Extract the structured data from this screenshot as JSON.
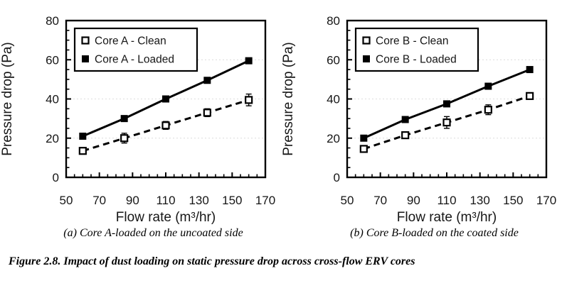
{
  "colors": {
    "ink": "#000000",
    "grid": "#dcdcdc",
    "background": "#ffffff"
  },
  "figure_caption": "Figure 2.8. Impact of dust loading on static pressure drop across cross-flow ERV cores",
  "chart_data": [
    {
      "type": "line",
      "caption": "(a) Core A-loaded on the uncoated side",
      "xlabel": "Flow rate (m³/hr)",
      "ylabel": "Pressure drop (Pa)",
      "xlim": [
        50,
        170
      ],
      "ylim": [
        0,
        80
      ],
      "x_ticks": [
        50,
        70,
        90,
        110,
        130,
        150,
        170
      ],
      "y_ticks": [
        0,
        20,
        40,
        60,
        80
      ],
      "x_minor_step": 5,
      "y_minor_step": 5,
      "grid": "horizontal-dotted",
      "legend_position": "top-left-inside",
      "x": [
        60,
        85,
        110,
        135,
        160
      ],
      "series": [
        {
          "name": "Core A - Clean",
          "marker": "open-square",
          "line": "dashed",
          "values": [
            13.5,
            20,
            26.5,
            33,
            39.5
          ],
          "errors": [
            1.5,
            2.5,
            2,
            2,
            3
          ]
        },
        {
          "name": "Core A - Loaded",
          "marker": "filled-square",
          "line": "solid",
          "values": [
            21,
            30,
            40,
            49.5,
            59.5
          ],
          "errors": [
            1,
            1,
            1,
            1,
            1
          ]
        }
      ]
    },
    {
      "type": "line",
      "caption": "(b) Core B-loaded on the coated side",
      "xlabel": "Flow rate (m³/hr)",
      "ylabel": "Pressure drop (Pa)",
      "xlim": [
        50,
        170
      ],
      "ylim": [
        0,
        80
      ],
      "x_ticks": [
        50,
        70,
        90,
        110,
        130,
        150,
        170
      ],
      "y_ticks": [
        0,
        20,
        40,
        60,
        80
      ],
      "x_minor_step": 5,
      "y_minor_step": 5,
      "grid": "horizontal-dotted",
      "legend_position": "top-left-inside",
      "x": [
        60,
        85,
        110,
        135,
        160
      ],
      "series": [
        {
          "name": "Core B - Clean",
          "marker": "open-square",
          "line": "dashed",
          "values": [
            14.5,
            21.5,
            28,
            34.5,
            41.5
          ],
          "errors": [
            1.5,
            1.5,
            3,
            2.5,
            1.5
          ]
        },
        {
          "name": "Core B - Loaded",
          "marker": "filled-square",
          "line": "solid",
          "values": [
            20,
            29.5,
            37.5,
            46.5,
            55
          ],
          "errors": [
            1,
            1,
            1,
            1,
            1
          ]
        }
      ]
    }
  ]
}
